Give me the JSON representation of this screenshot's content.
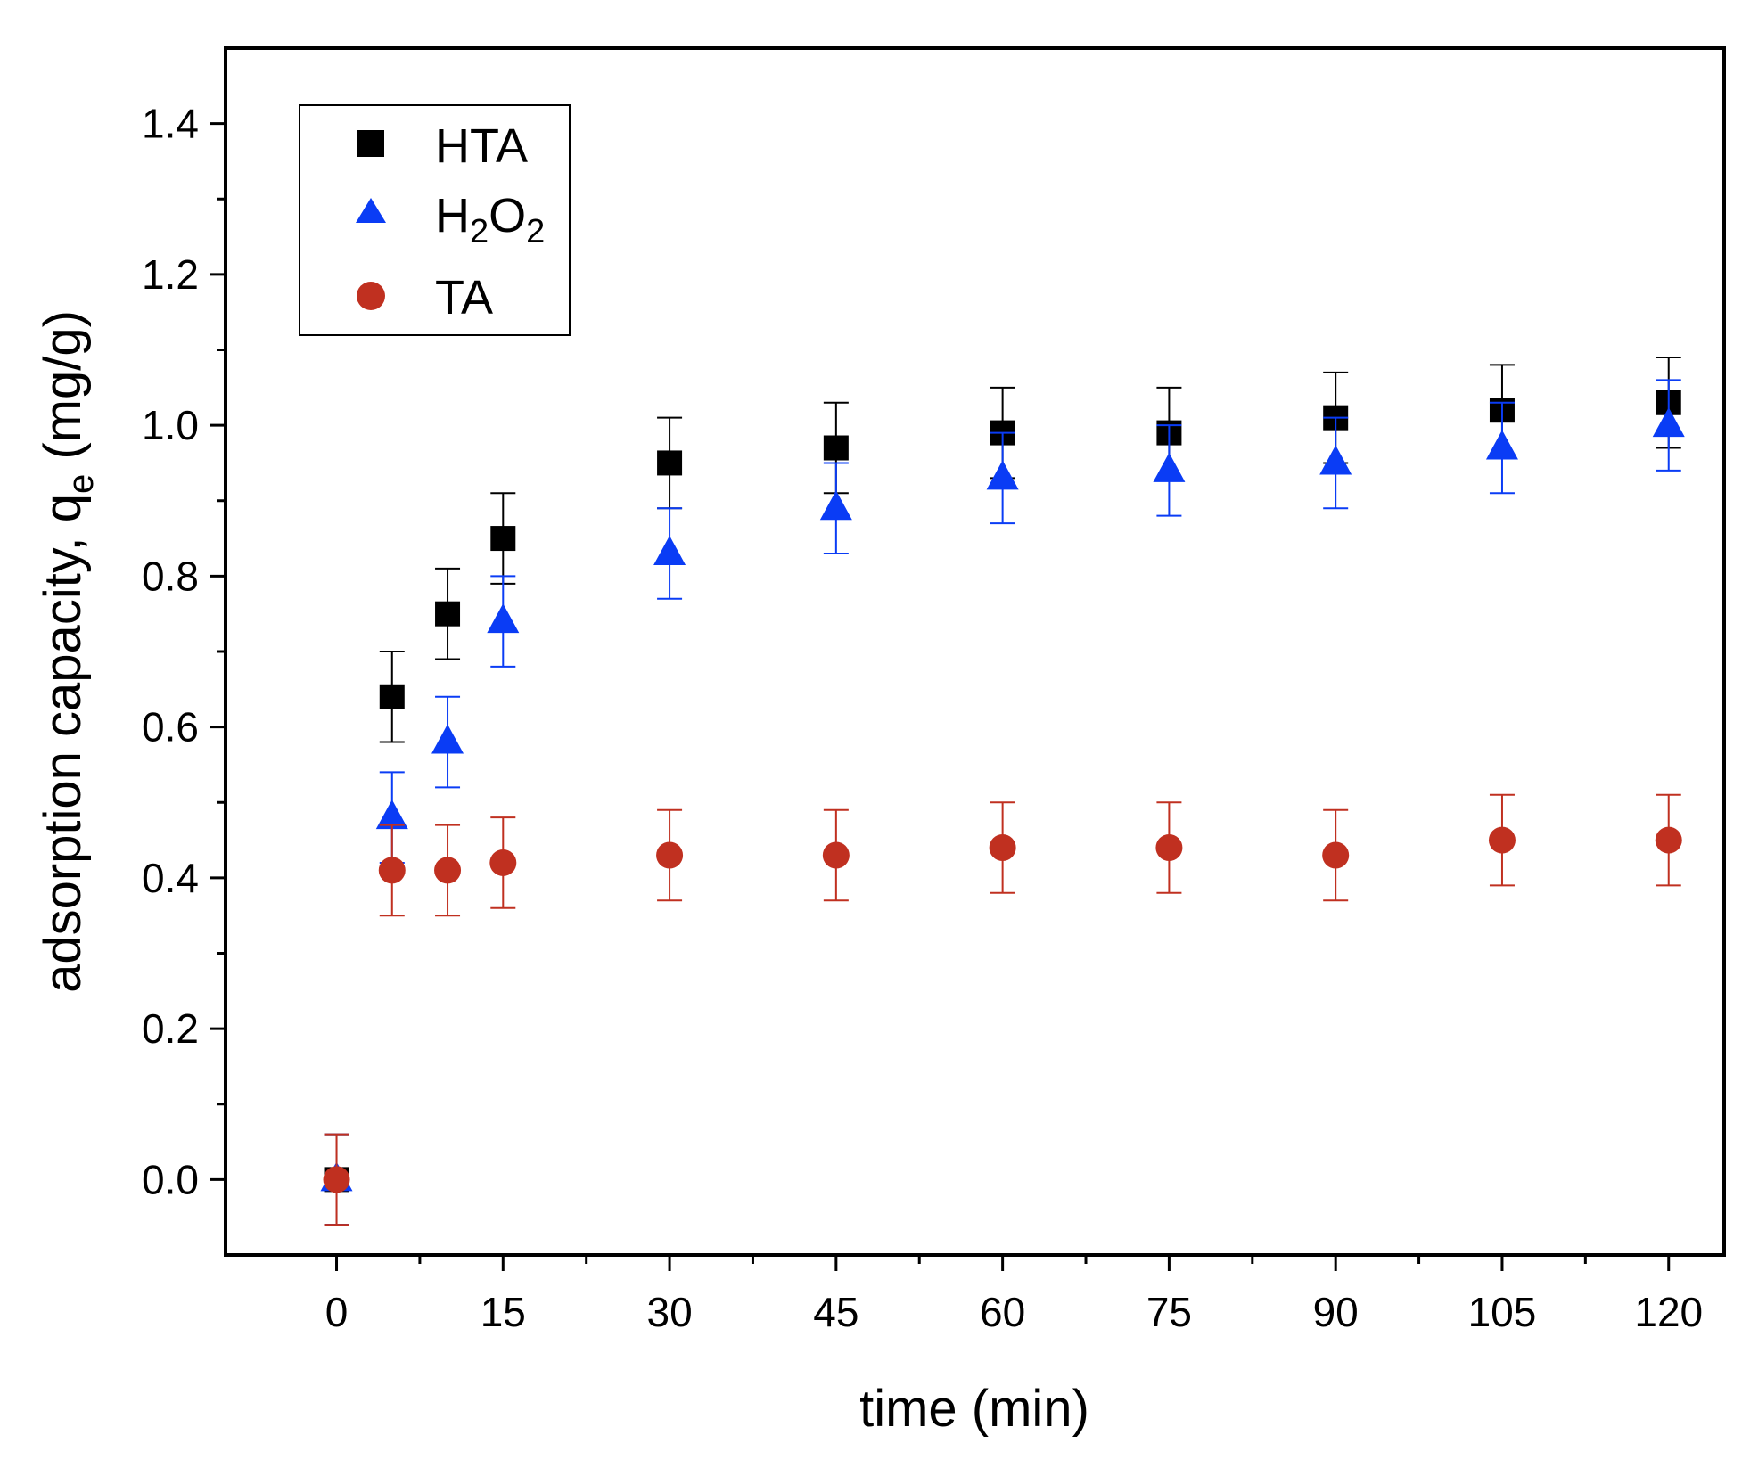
{
  "chart_data": {
    "type": "scatter",
    "title": "",
    "xlabel": "time (min)",
    "ylabel": "adsorption capacity, q",
    "ylabel_subscript": "e",
    "ylabel_units": " (mg/g)",
    "xlim": [
      -10,
      125
    ],
    "ylim": [
      -0.1,
      1.5
    ],
    "xticks": [
      0,
      15,
      30,
      45,
      60,
      75,
      90,
      105,
      120
    ],
    "xtick_labels": [
      "0",
      "15",
      "30",
      "45",
      "60",
      "75",
      "90",
      "105",
      "120"
    ],
    "xticks_minor": [
      7.5,
      22.5,
      37.5,
      52.5,
      67.5,
      82.5,
      97.5,
      112.5
    ],
    "yticks": [
      0.0,
      0.2,
      0.4,
      0.6,
      0.8,
      1.0,
      1.2,
      1.4
    ],
    "ytick_labels": [
      "0.0",
      "0.2",
      "0.4",
      "0.6",
      "0.8",
      "1.0",
      "1.2",
      "1.4"
    ],
    "yticks_minor": [
      0.1,
      0.3,
      0.5,
      0.7,
      0.9,
      1.1,
      1.3
    ],
    "grid": false,
    "legend_position": "top-left",
    "x": [
      0,
      5,
      10,
      15,
      30,
      45,
      60,
      75,
      90,
      105,
      120
    ],
    "series": [
      {
        "name": "HTA",
        "legend_main": "HTA",
        "legend_sub1": "",
        "legend_mid": "",
        "legend_sub2": "",
        "marker": "square",
        "color": "#000000",
        "values": [
          0.0,
          0.64,
          0.75,
          0.85,
          0.95,
          0.97,
          0.99,
          0.99,
          1.01,
          1.02,
          1.03
        ],
        "errors": [
          0.06,
          0.06,
          0.06,
          0.06,
          0.06,
          0.06,
          0.06,
          0.06,
          0.06,
          0.06,
          0.06
        ]
      },
      {
        "name": "H2O2",
        "legend_main": "H",
        "legend_sub1": "2",
        "legend_mid": "O",
        "legend_sub2": "2",
        "marker": "triangle",
        "color": "#0a3cf5",
        "values": [
          0.0,
          0.48,
          0.58,
          0.74,
          0.83,
          0.89,
          0.93,
          0.94,
          0.95,
          0.97,
          1.0
        ],
        "errors": [
          0.06,
          0.06,
          0.06,
          0.06,
          0.06,
          0.06,
          0.06,
          0.06,
          0.06,
          0.06,
          0.06
        ]
      },
      {
        "name": "TA",
        "legend_main": "TA",
        "legend_sub1": "",
        "legend_mid": "",
        "legend_sub2": "",
        "marker": "circle",
        "color": "#c03020",
        "values": [
          0.0,
          0.41,
          0.41,
          0.42,
          0.43,
          0.43,
          0.44,
          0.44,
          0.43,
          0.45,
          0.45
        ],
        "errors": [
          0.06,
          0.06,
          0.06,
          0.06,
          0.06,
          0.06,
          0.06,
          0.06,
          0.06,
          0.06,
          0.06
        ]
      }
    ]
  }
}
